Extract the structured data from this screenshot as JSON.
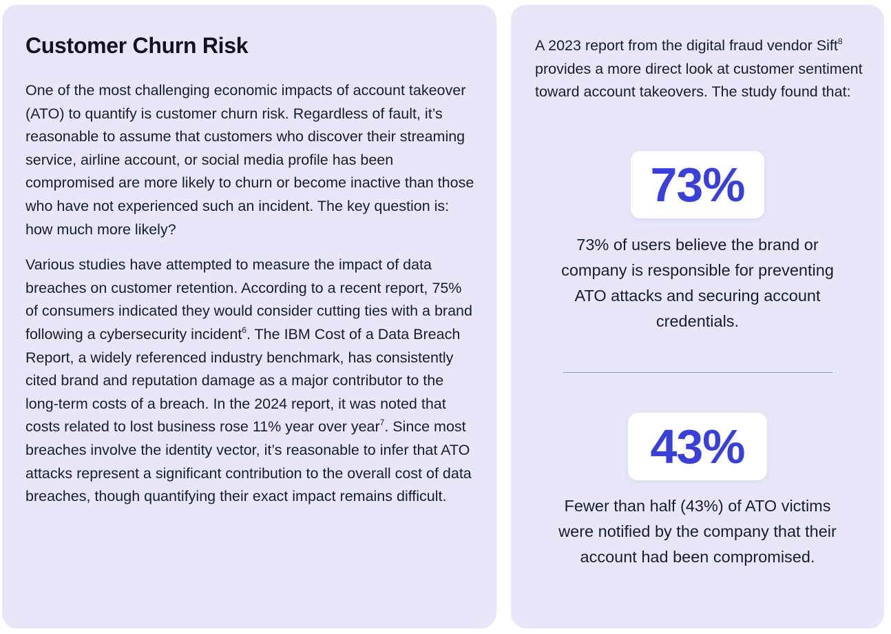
{
  "left_panel": {
    "title": "Customer Churn Risk",
    "paragraph_1": "One of the most challenging economic impacts of account takeover (ATO) to quantify is customer churn risk. Regardless of fault, it’s reasonable to assume that customers who discover their streaming service, airline account, or social media profile has been compromised are more likely to churn or become inactive than those who have not experienced such an incident. The key question is: how much more likely?",
    "paragraph_2": {
      "part_a": "Various studies have attempted to measure the impact of data breaches on customer retention. According to a recent report, 75% of consumers indicated they would consider cutting ties with a brand following a cybersecurity incident",
      "footnote_a": "6",
      "part_b": ". The IBM Cost of a Data Breach Report, a widely referenced industry benchmark, has consistently cited brand and reputation damage as a major contributor to the long-term costs of a breach. In the 2024 report, it was noted that costs related to lost business rose 11% year over year",
      "footnote_b": "7",
      "part_c": ". Since most breaches involve the identity vector, it’s reasonable to infer that ATO attacks represent a significant contribution to the overall cost of data breaches, though quantifying their exact impact remains difficult."
    }
  },
  "right_panel": {
    "intro": {
      "part_a": "A 2023 report from the digital fraud vendor Sift",
      "footnote": "8",
      "part_b": " provides a more direct look at customer sentiment toward account takeovers. The study found that:"
    },
    "stats": [
      {
        "value": "73%",
        "caption": "73% of users believe the brand or company is responsible for preventing ATO attacks and securing account credentials."
      },
      {
        "value": "43%",
        "caption": "Fewer than half (43%) of ATO victims were notified by the company that their account had been compromised."
      }
    ]
  },
  "colors": {
    "panel_background": "#e7e7f8",
    "stat_accent": "#3a3fd8",
    "divider": "#8f96e2",
    "text": "#1b1b2e"
  }
}
